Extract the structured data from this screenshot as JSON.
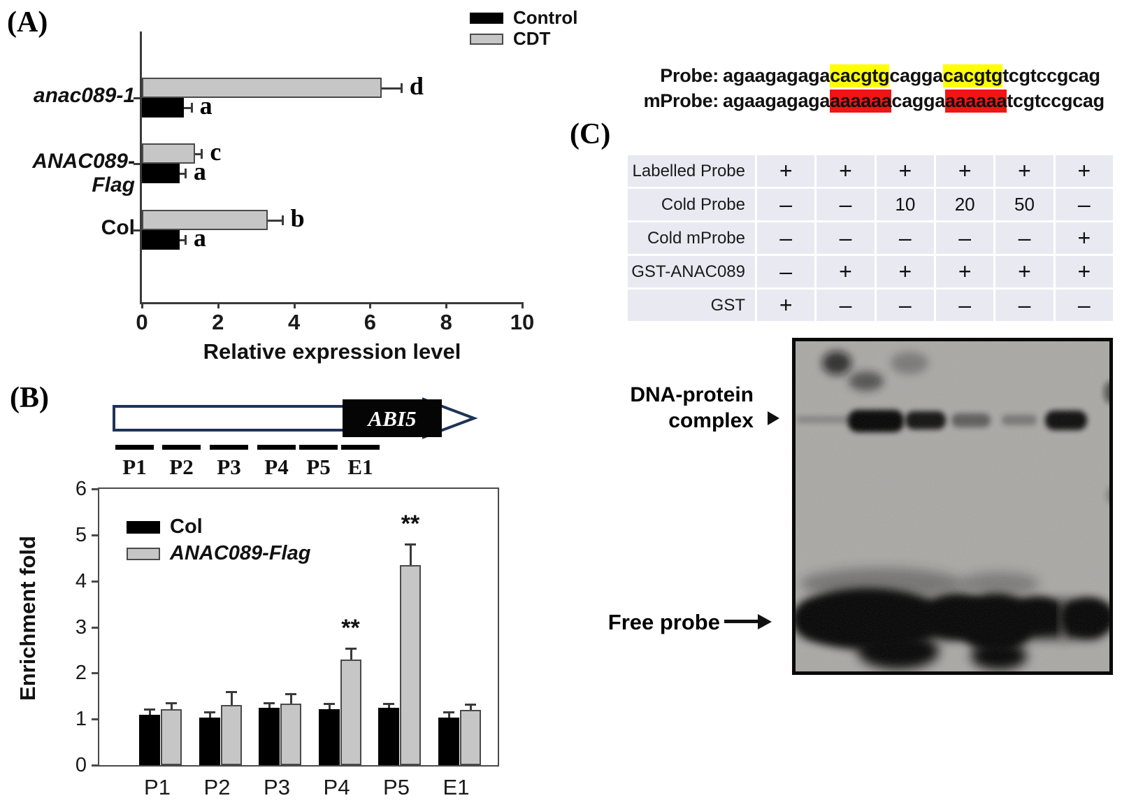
{
  "panel_a": {
    "tag": "(A)"
  },
  "panel_b": {
    "tag": "(B)",
    "gene_label": "ABI5",
    "probe_sites": [
      "P1",
      "P2",
      "P3",
      "P4",
      "P5",
      "E1"
    ]
  },
  "panel_c": {
    "tag": "(C)",
    "probe_row": {
      "label": "Probe:",
      "segments": [
        {
          "text": "agaagagaga",
          "highlight": "none"
        },
        {
          "text": "cacgtg",
          "highlight": "yellow"
        },
        {
          "text": "cagga",
          "highlight": "none"
        },
        {
          "text": "cacgtg",
          "highlight": "yellow"
        },
        {
          "text": "tcgtccgcag",
          "highlight": "none"
        }
      ]
    },
    "mprobe_row": {
      "label": "mProbe:",
      "segments": [
        {
          "text": "agaagagaga",
          "highlight": "none"
        },
        {
          "text": "aaaaaa",
          "highlight": "red"
        },
        {
          "text": "cagga",
          "highlight": "none"
        },
        {
          "text": "aaaaaa",
          "highlight": "red"
        },
        {
          "text": "tcgtccgcag",
          "highlight": "none"
        }
      ]
    },
    "highlight_colors": {
      "yellow": "#ffff00",
      "red": "#f01414"
    },
    "table": {
      "rows": [
        {
          "label": "Labelled Probe",
          "values": [
            "+",
            "+",
            "+",
            "+",
            "+",
            "+"
          ]
        },
        {
          "label": "Cold Probe",
          "values": [
            "–",
            "–",
            "10",
            "20",
            "50",
            "–"
          ]
        },
        {
          "label": "Cold mProbe",
          "values": [
            "–",
            "–",
            "–",
            "–",
            "–",
            "+"
          ]
        },
        {
          "label": "GST-ANAC089",
          "values": [
            "–",
            "+",
            "+",
            "+",
            "+",
            "+"
          ]
        },
        {
          "label": "GST",
          "values": [
            "+",
            "–",
            "–",
            "–",
            "–",
            "–"
          ]
        }
      ]
    },
    "gel": {
      "complex_label_line1": "DNA-protein",
      "complex_label_line2": "complex",
      "free_probe_label": "Free probe",
      "lanes": 6,
      "band_rows": {
        "dna_protein_complex": [
          "none",
          "strong",
          "strong",
          "weak",
          "very-weak",
          "strong"
        ],
        "free_probe": [
          "strong",
          "strong",
          "strong",
          "strong",
          "medium",
          "strong"
        ]
      }
    }
  },
  "chart_data": [
    {
      "type": "bar",
      "panel": "A",
      "orientation": "horizontal",
      "categories": [
        "anac089-1",
        "ANAC089-Flag",
        "Col"
      ],
      "categories_italic": [
        true,
        true,
        false
      ],
      "series": [
        {
          "name": "CDT",
          "color": "#c6c6c6",
          "values": [
            6.3,
            1.4,
            3.3
          ],
          "errors": [
            0.5,
            0.15,
            0.37
          ],
          "letters": [
            "d",
            "c",
            "b"
          ]
        },
        {
          "name": "Control",
          "color": "#000000",
          "values": [
            1.1,
            1.0,
            1.0
          ],
          "errors": [
            0.18,
            0.12,
            0.12
          ],
          "letters": [
            "a",
            "a",
            "a"
          ]
        }
      ],
      "xlabel": "Relative expression level",
      "xlim": [
        0,
        10
      ],
      "xticks": [
        0,
        2,
        4,
        6,
        8,
        10
      ],
      "legend_position": "top-right"
    },
    {
      "type": "bar",
      "panel": "B",
      "orientation": "vertical",
      "categories": [
        "P1",
        "P2",
        "P3",
        "P4",
        "P5",
        "E1"
      ],
      "series": [
        {
          "name": "Col",
          "color": "#000000",
          "values": [
            1.1,
            1.03,
            1.25,
            1.22,
            1.25,
            1.03
          ],
          "errors": [
            0.12,
            0.12,
            0.1,
            0.12,
            0.08,
            0.12
          ]
        },
        {
          "name": "ANAC089-Flag",
          "color": "#c6c6c6",
          "values": [
            1.22,
            1.3,
            1.33,
            2.3,
            4.35,
            1.2
          ],
          "errors": [
            0.13,
            0.3,
            0.22,
            0.23,
            0.45,
            0.12
          ],
          "significance": [
            "",
            "",
            "",
            "**",
            "**",
            ""
          ]
        }
      ],
      "ylabel": "Enrichment fold",
      "ylim": [
        0,
        6
      ],
      "yticks": [
        0,
        1,
        2,
        3,
        4,
        5,
        6
      ],
      "legend_position": "top-left-inside"
    }
  ]
}
